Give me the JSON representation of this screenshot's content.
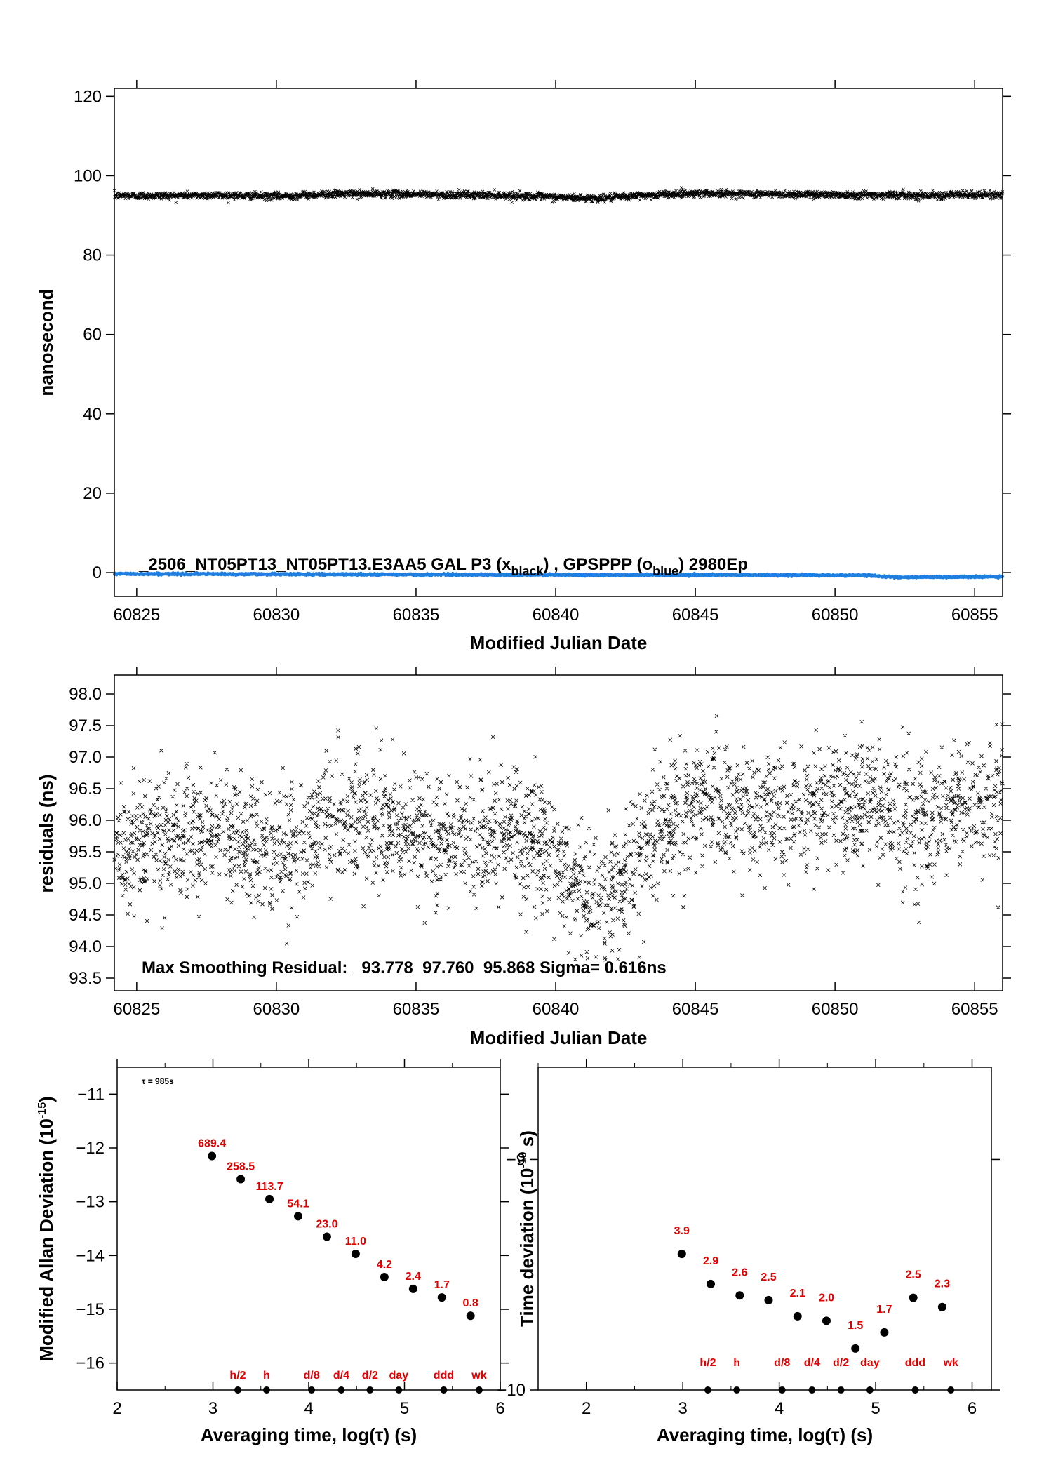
{
  "chart_data": [
    {
      "type": "scatter",
      "xlabel": "Modified Julian Date",
      "ylabel": "nanosecond",
      "xlim": [
        60824.2,
        60856.0
      ],
      "ylim": [
        -6,
        122
      ],
      "xticks": [
        60825,
        60830,
        60835,
        60840,
        60845,
        60850,
        60855
      ],
      "yticks": [
        0,
        20,
        40,
        60,
        80,
        100,
        120
      ],
      "annotation": "_2506_NT05PT13_NT05PT13.E3AA5     GAL P3 (x",
      "annotation_sub1": "black",
      "annotation_mid": ") ,  GPSPPP (o",
      "annotation_sub2": "blue",
      "annotation_end": ")  2980Ep",
      "series": [
        {
          "name": "GAL P3",
          "marker": "x",
          "color": "#000000",
          "x": [
            60824.2,
            60826,
            60828,
            60830,
            60832,
            60834,
            60836,
            60838,
            60840,
            60841.5,
            60843,
            60845,
            60847,
            60849,
            60851,
            60853,
            60856
          ],
          "y": [
            95.0,
            95.0,
            95.1,
            94.8,
            95.4,
            95.4,
            95.2,
            95.1,
            94.6,
            94.3,
            95.0,
            95.6,
            95.4,
            95.3,
            95.2,
            95.1,
            95.2
          ]
        },
        {
          "name": "GPSPPP",
          "marker": "o",
          "color": "#1e7fe0",
          "x": [
            60824.2,
            60830,
            60836,
            60840,
            60846,
            60851,
            60852.5,
            60856
          ],
          "y": [
            -0.3,
            -0.4,
            -0.5,
            -0.6,
            -0.6,
            -0.7,
            -1.2,
            -1.0
          ]
        }
      ]
    },
    {
      "type": "scatter",
      "xlabel": "Modified Julian Date",
      "ylabel": "residuals (ns)",
      "xlim": [
        60824.2,
        60856.0
      ],
      "ylim": [
        93.3,
        98.3
      ],
      "xticks": [
        60825,
        60830,
        60835,
        60840,
        60845,
        60850,
        60855
      ],
      "yticks": [
        93.5,
        94.0,
        94.5,
        95.0,
        95.5,
        96.0,
        96.5,
        97.0,
        97.5,
        98.0
      ],
      "annotation": "Max Smoothing Residual: _93.778_97.760_95.868  Sigma= 0.616ns",
      "series": [
        {
          "marker": "x",
          "color": "#000000",
          "trend_x": [
            60824.2,
            60826,
            60828,
            60830,
            60832,
            60834,
            60836,
            60838,
            60839.5,
            60840.5,
            60841.5,
            60842.5,
            60843.5,
            60845,
            60847,
            60849,
            60851,
            60853,
            60856
          ],
          "trend_y": [
            95.5,
            95.7,
            95.8,
            95.4,
            96.0,
            95.9,
            95.6,
            95.9,
            95.8,
            95.0,
            94.7,
            95.1,
            95.9,
            96.3,
            96.2,
            96.1,
            96.3,
            96.0,
            96.4
          ],
          "spread_sigma": 0.5
        }
      ]
    },
    {
      "type": "scatter",
      "xlabel": "Averaging time, log(τ) (s)",
      "ylabel": "Modified Allan Deviation (10",
      "ylabel_sup": "-15",
      "ylabel_end": ")",
      "xlim": [
        2,
        6
      ],
      "ylim": [
        -16.5,
        -10.5
      ],
      "xticks": [
        2,
        3,
        4,
        5,
        6
      ],
      "yticks": [
        -11,
        -12,
        -13,
        -14,
        -15,
        -16
      ],
      "tau_note": "τ = 985s",
      "points": [
        {
          "x": 2.99,
          "y": -12.15,
          "label": "689.4"
        },
        {
          "x": 3.29,
          "y": -12.58,
          "label": "258.5"
        },
        {
          "x": 3.59,
          "y": -12.95,
          "label": "113.7"
        },
        {
          "x": 3.89,
          "y": -13.27,
          "label": "54.1"
        },
        {
          "x": 4.19,
          "y": -13.65,
          "label": "23.0"
        },
        {
          "x": 4.49,
          "y": -13.97,
          "label": "11.0"
        },
        {
          "x": 4.79,
          "y": -14.4,
          "label": "4.2"
        },
        {
          "x": 5.09,
          "y": -14.62,
          "label": "2.4"
        },
        {
          "x": 5.39,
          "y": -14.78,
          "label": "1.7"
        },
        {
          "x": 5.69,
          "y": -15.12,
          "label": "0.8"
        }
      ],
      "markers": [
        {
          "x": 3.26,
          "label": "h/2"
        },
        {
          "x": 3.56,
          "label": "h"
        },
        {
          "x": 4.03,
          "label": "d/8"
        },
        {
          "x": 4.34,
          "label": "d/4"
        },
        {
          "x": 4.64,
          "label": "d/2"
        },
        {
          "x": 4.94,
          "label": "day"
        },
        {
          "x": 5.41,
          "label": "ddd"
        },
        {
          "x": 5.78,
          "label": "wk"
        }
      ]
    },
    {
      "type": "scatter",
      "xlabel": "Averaging time, log(τ) (s)",
      "ylabel": "Time deviation (10",
      "ylabel_sup": "-10",
      "ylabel_end": " s)",
      "xlim": [
        1.5,
        6.2
      ],
      "ylim": [
        -10.0,
        -8.6
      ],
      "xticks": [
        2,
        3,
        4,
        5,
        6
      ],
      "yticks": [
        -9,
        -10
      ],
      "points": [
        {
          "x": 2.99,
          "y": -9.41,
          "label": "3.9"
        },
        {
          "x": 3.29,
          "y": -9.54,
          "label": "2.9"
        },
        {
          "x": 3.59,
          "y": -9.59,
          "label": "2.6"
        },
        {
          "x": 3.89,
          "y": -9.61,
          "label": "2.5"
        },
        {
          "x": 4.19,
          "y": -9.68,
          "label": "2.1"
        },
        {
          "x": 4.49,
          "y": -9.7,
          "label": "2.0"
        },
        {
          "x": 4.79,
          "y": -9.82,
          "label": "1.5"
        },
        {
          "x": 5.09,
          "y": -9.75,
          "label": "1.7"
        },
        {
          "x": 5.39,
          "y": -9.6,
          "label": "2.5"
        },
        {
          "x": 5.69,
          "y": -9.64,
          "label": "2.3"
        }
      ],
      "markers": [
        {
          "x": 3.26,
          "label": "h/2"
        },
        {
          "x": 3.56,
          "label": "h"
        },
        {
          "x": 4.03,
          "label": "d/8"
        },
        {
          "x": 4.34,
          "label": "d/4"
        },
        {
          "x": 4.64,
          "label": "d/2"
        },
        {
          "x": 4.94,
          "label": "day"
        },
        {
          "x": 5.41,
          "label": "ddd"
        },
        {
          "x": 5.78,
          "label": "wk"
        }
      ]
    }
  ]
}
